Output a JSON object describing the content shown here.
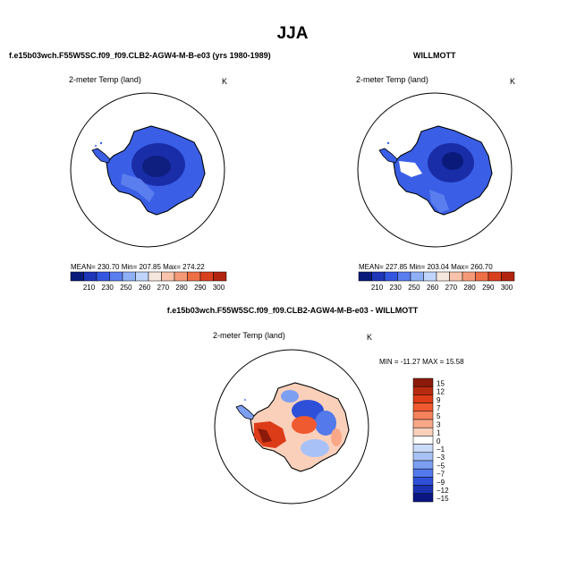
{
  "season": "JJA",
  "panels": {
    "model": {
      "title": "f.e15b03wch.F55W5SC.f09_f09.CLB2-AGW4-M-B-e03 (yrs 1980-1989)",
      "variable": "2-meter Temp (land)",
      "units": "K",
      "stats": "MEAN= 230.70   Min= 207.85   Max= 274.22",
      "colorbar_labels": [
        "210",
        "230",
        "250",
        "260",
        "270",
        "280",
        "290",
        "300"
      ]
    },
    "obs": {
      "title": "WILLMOTT",
      "variable": "2-meter Temp (land)",
      "units": "K",
      "stats": "MEAN= 227.85   Min= 203.04   Max= 260.70",
      "colorbar_labels": [
        "210",
        "230",
        "250",
        "260",
        "270",
        "280",
        "290",
        "300"
      ]
    },
    "diff": {
      "title": "f.e15b03wch.F55W5SC.f09_f09.CLB2-AGW4-M-B-e03 - WILLMOTT",
      "variable": "2-meter Temp (land)",
      "units": "K",
      "stats": "MIN = -11.27  MAX =  15.58",
      "colorbar_labels": [
        "15",
        "12",
        "9",
        "7",
        "5",
        "3",
        "1",
        "0",
        "−1",
        "−3",
        "−5",
        "−7",
        "−9",
        "−12",
        "−15"
      ]
    }
  },
  "colors": {
    "abs_scale": [
      "#0a1a7a",
      "#1f36b8",
      "#3355e0",
      "#5b7eef",
      "#8fb0f5",
      "#c0d5fb",
      "#f5e6de",
      "#f8c3aa",
      "#f59a78",
      "#ee6e45",
      "#d8401e",
      "#b32410"
    ],
    "diff_scale": [
      "#8c1a0a",
      "#b82a10",
      "#dd3c18",
      "#f05a30",
      "#f5825c",
      "#f8a888",
      "#fad0bb",
      "#ffffff",
      "#cadbfa",
      "#a8c2f7",
      "#7d9ff2",
      "#5379ea",
      "#2e50d8",
      "#1a32b0",
      "#0a1782"
    ],
    "land_blue": "#3a5fe6",
    "land_dark": "#1a2da8"
  }
}
